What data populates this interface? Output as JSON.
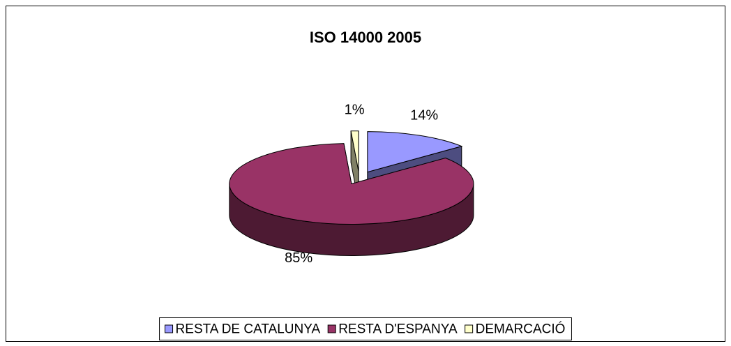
{
  "chart_data": {
    "type": "pie",
    "title": "ISO 14000 2005",
    "categories": [
      "RESTA DE CATALUNYA",
      "RESTA D'ESPANYA",
      "DEMARCACIÓ"
    ],
    "values": [
      14,
      85,
      1
    ],
    "value_labels": [
      "14%",
      "85%",
      "1%"
    ],
    "colors": [
      "#9999ff",
      "#993366",
      "#ffffcc"
    ],
    "legend": "bottom"
  }
}
